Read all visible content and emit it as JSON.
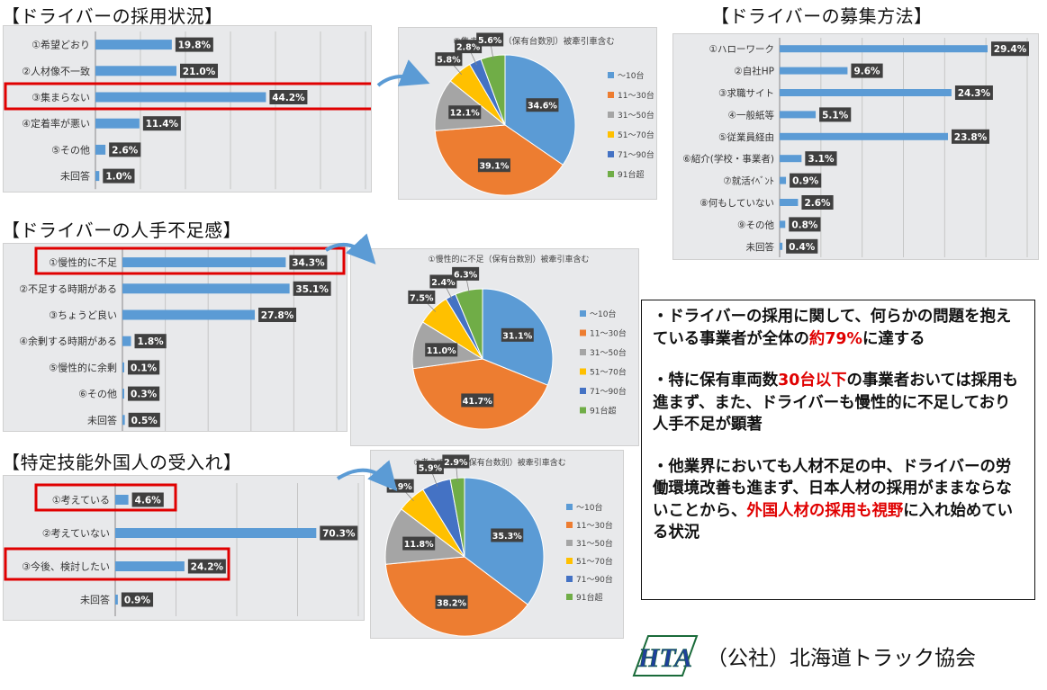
{
  "sections": {
    "hiring_title": "【ドライバーの採用状況】",
    "recruit_title": "【ドライバーの募集方法】",
    "shortage_title": "【ドライバーの人手不足感】",
    "foreign_title": "【特定技能外国人の受入れ】"
  },
  "chart_data": [
    {
      "id": "hiring",
      "type": "bar",
      "orientation": "horizontal",
      "categories": [
        "①希望どおり",
        "②人材像不一致",
        "③集まらない",
        "④定着率が悪い",
        "⑤その他",
        "未回答"
      ],
      "values": [
        19.8,
        21.0,
        44.2,
        11.4,
        2.6,
        1.0
      ],
      "value_labels": [
        "19.8%",
        "21.0%",
        "44.2%",
        "11.4%",
        "2.6%",
        "1.0%"
      ],
      "xlim": [
        0,
        70
      ],
      "highlight": [
        2
      ]
    },
    {
      "id": "hiring_pie",
      "type": "pie",
      "title": "③集まらない（保有台数別）被牽引車含む",
      "categories": [
        "～10台",
        "11～30台",
        "31～50台",
        "51～70台",
        "71～90台",
        "91台超"
      ],
      "values": [
        34.6,
        39.1,
        12.1,
        5.8,
        2.8,
        5.6
      ],
      "value_labels": [
        "34.6%",
        "39.1%",
        "12.1%",
        "5.8%",
        "2.8%",
        "5.6%"
      ],
      "colors": [
        "#5b9bd5",
        "#ed7d31",
        "#a5a5a5",
        "#ffc000",
        "#4472c4",
        "#70ad47"
      ]
    },
    {
      "id": "recruit",
      "type": "bar",
      "orientation": "horizontal",
      "categories": [
        "①ハローワーク",
        "②自社HP",
        "③求職サイト",
        "④一般紙等",
        "⑤従業員経由",
        "⑥紹介(学校・事業者)",
        "⑦就活ｲﾍﾞﾝﾄ",
        "⑧何もしていない",
        "⑨その他",
        "未回答"
      ],
      "values": [
        29.4,
        9.6,
        24.3,
        5.1,
        23.8,
        3.1,
        0.9,
        2.6,
        0.8,
        0.4
      ],
      "value_labels": [
        "29.4%",
        "9.6%",
        "24.3%",
        "5.1%",
        "23.8%",
        "3.1%",
        "0.9%",
        "2.6%",
        "0.8%",
        "0.4%"
      ],
      "xlim": [
        0,
        35
      ]
    },
    {
      "id": "shortage",
      "type": "bar",
      "orientation": "horizontal",
      "categories": [
        "①慢性的に不足",
        "②不足する時期がある",
        "③ちょうど良い",
        "④余剰する時期がある",
        "⑤慢性的に余剰",
        "⑥その他",
        "未回答"
      ],
      "values": [
        34.3,
        35.1,
        27.8,
        1.8,
        0.1,
        0.3,
        0.5
      ],
      "value_labels": [
        "34.3%",
        "35.1%",
        "27.8%",
        "1.8%",
        "0.1%",
        "0.3%",
        "0.5%"
      ],
      "xlim": [
        0,
        45
      ],
      "highlight": [
        0
      ]
    },
    {
      "id": "shortage_pie",
      "type": "pie",
      "title": "①慢性的に不足（保有台数別）被牽引車含む",
      "categories": [
        "～10台",
        "11～30台",
        "31～50台",
        "51～70台",
        "71～90台",
        "91台超"
      ],
      "values": [
        31.1,
        41.7,
        11.0,
        7.5,
        2.4,
        6.3
      ],
      "value_labels": [
        "31.1%",
        "41.7%",
        "11.0%",
        "7.5%",
        "2.4%",
        "6.3%"
      ],
      "colors": [
        "#5b9bd5",
        "#ed7d31",
        "#a5a5a5",
        "#ffc000",
        "#4472c4",
        "#70ad47"
      ]
    },
    {
      "id": "foreign",
      "type": "bar",
      "orientation": "horizontal",
      "categories": [
        "①考えている",
        "②考えていない",
        "③今後、検討したい",
        "未回答"
      ],
      "values": [
        4.6,
        70.3,
        24.2,
        0.9
      ],
      "value_labels": [
        "4.6%",
        "70.3%",
        "24.2%",
        "0.9%"
      ],
      "xlim": [
        0,
        85
      ],
      "highlight": [
        0,
        2
      ]
    },
    {
      "id": "foreign_pie",
      "type": "pie",
      "title": "①考えている（保有台数別）被牽引車含む",
      "categories": [
        "～10台",
        "11～30台",
        "31～50台",
        "51～70台",
        "71～90台",
        "91台超"
      ],
      "values": [
        35.3,
        38.2,
        11.8,
        5.9,
        5.9,
        2.9
      ],
      "value_labels": [
        "35.3%",
        "38.2%",
        "11.8%",
        "5.9%",
        "5.9%",
        "2.9%"
      ],
      "colors": [
        "#5b9bd5",
        "#ed7d31",
        "#a5a5a5",
        "#ffc000",
        "#4472c4",
        "#70ad47"
      ]
    }
  ],
  "notes": {
    "p1_a": "・ドライバーの採用に関して、何らかの問題を抱えている事業者が全体の",
    "p1_red": "約79%",
    "p1_b": "に達する",
    "p2_a": "・特に保有車両数",
    "p2_red": "30台以下",
    "p2_b": "の事業者おいては採用も進まず、また、ドライバーも慢性的に不足しており人手不足が顕著",
    "p3_a": "・他業界においても人材不足の中、ドライバーの労働環境改善も進まず、日本人材の採用がままならないことから、",
    "p3_red": "外国人材の採用も視野",
    "p3_b": "に入れ始めている状況"
  },
  "footer": {
    "logo_text": "HTA",
    "org_name": "（公社）北海道トラック協会"
  },
  "colors": {
    "bar": "#5b9bd5",
    "highlight": "#e00000",
    "label_bg": "#404040",
    "arrow": "#5b9bd5"
  }
}
